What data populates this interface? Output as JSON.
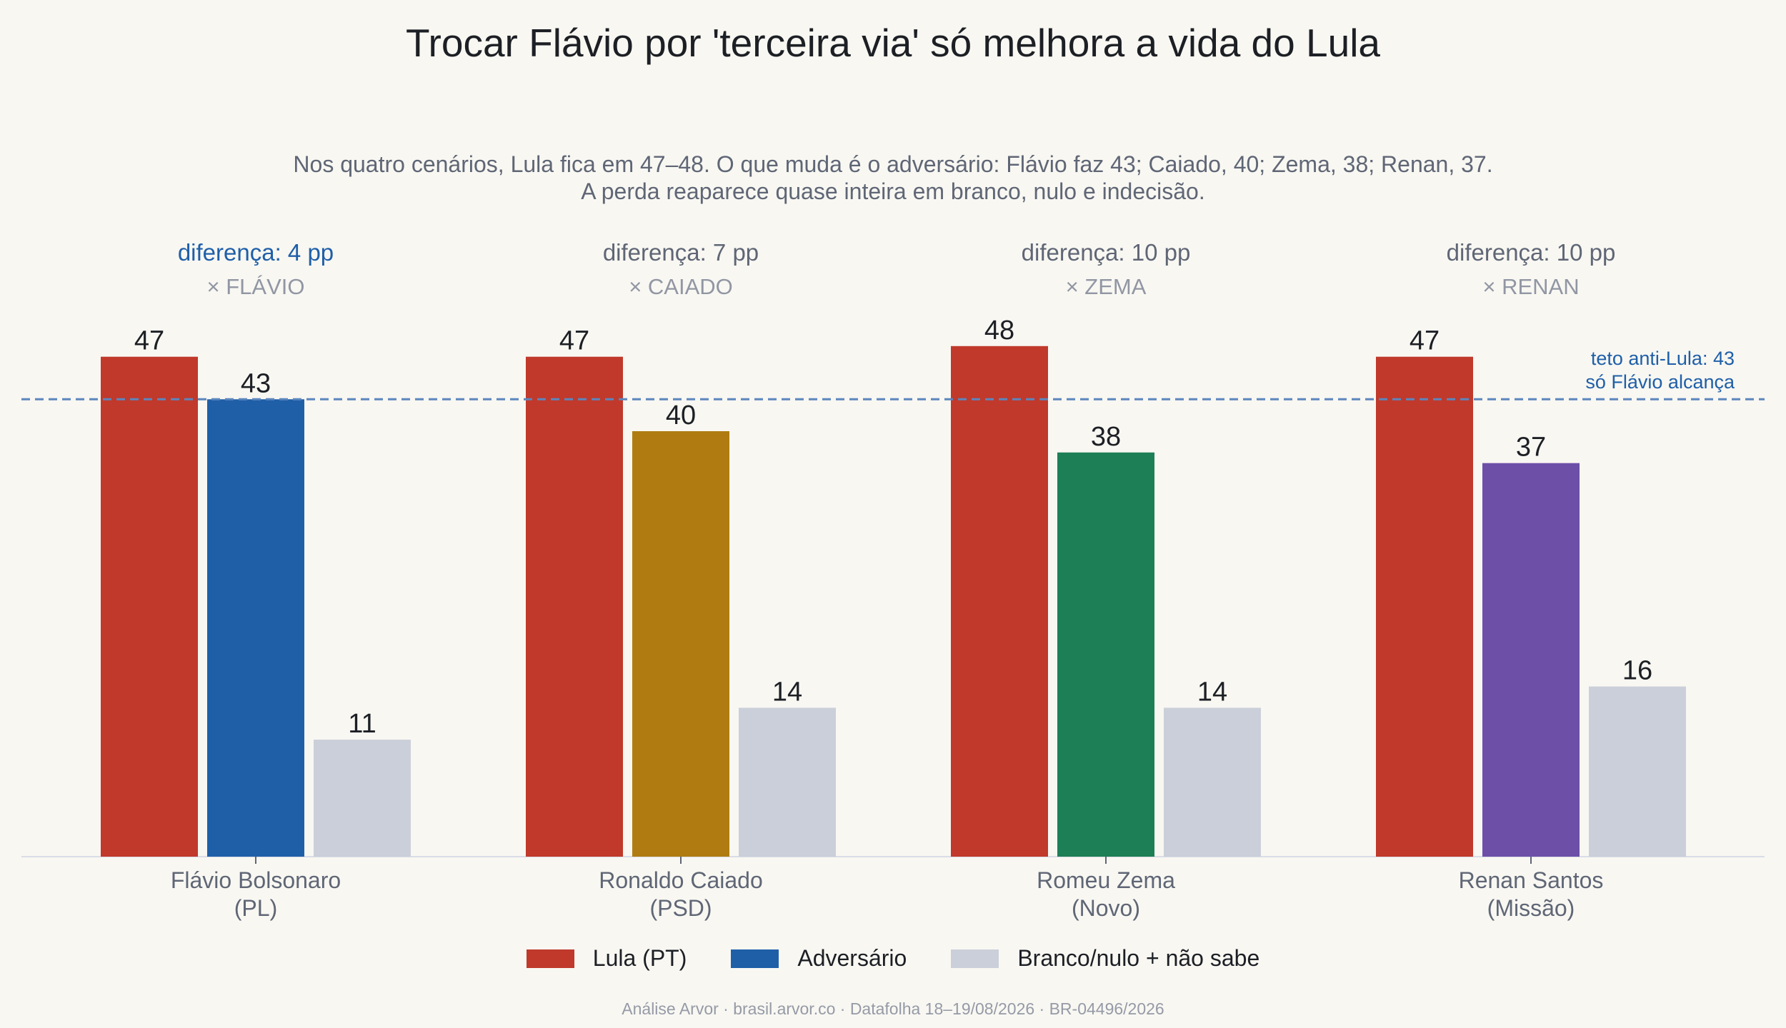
{
  "title": "Trocar Flávio por 'terceira via' só melhora a vida do Lula",
  "subtitle": [
    "Nos quatro cenários, Lula fica em 47–48. O que muda é o adversário: Flávio faz 43; Caiado, 40; Zema, 38; Renan, 37.",
    "A perda reaparece quase inteira em branco, nulo e indecisão."
  ],
  "footer": "Análise Arvor · brasil.arvor.co · Datafolha 18–19/08/2026 · BR-04496/2026",
  "colors": {
    "lula": "#c0392b",
    "flavio": "#1f5fa8",
    "caiado": "#b07c11",
    "zema": "#1d7f55",
    "renan": "#6d4fa8",
    "blank": "#cbcfd9",
    "reference_line": "#5c86bd",
    "highlight_text": "#1f5fa8",
    "muted_text": "#5f6675",
    "label_gray": "#9196a3"
  },
  "legend": [
    {
      "label": "Lula (PT)",
      "color": "#c0392b"
    },
    {
      "label": "Adversário",
      "color": "#1f5fa8"
    },
    {
      "label": "Branco/nulo + não sabe",
      "color": "#cbcfd9"
    }
  ],
  "chart_data": {
    "type": "bar",
    "categories": [
      "Flávio Bolsonaro\n(PL)",
      "Ronaldo Caiado\n(PSD)",
      "Romeu Zema\n(Novo)",
      "Renan Santos\n(Missão)"
    ],
    "series": [
      {
        "name": "Lula (PT)",
        "values": [
          47,
          47,
          48,
          47
        ],
        "colors": [
          "#c0392b",
          "#c0392b",
          "#c0392b",
          "#c0392b"
        ]
      },
      {
        "name": "Adversário",
        "values": [
          43,
          40,
          38,
          37
        ],
        "colors": [
          "#1f5fa8",
          "#b07c11",
          "#1d7f55",
          "#6d4fa8"
        ]
      },
      {
        "name": "Branco/nulo + não sabe",
        "values": [
          11,
          14,
          14,
          16
        ],
        "colors": [
          "#cbcfd9",
          "#cbcfd9",
          "#cbcfd9",
          "#cbcfd9"
        ]
      }
    ],
    "group_annotations": [
      {
        "diff": "diferença: 4 pp",
        "opponent": "× FLÁVIO",
        "highlight": true
      },
      {
        "diff": "diferença: 7 pp",
        "opponent": "× CAIADO",
        "highlight": false
      },
      {
        "diff": "diferença: 10 pp",
        "opponent": "× ZEMA",
        "highlight": false
      },
      {
        "diff": "diferença: 10 pp",
        "opponent": "× RENAN",
        "highlight": false
      }
    ],
    "reference_line": {
      "value": 43,
      "label": [
        "teto anti-Lula: 43",
        "só Flávio alcança"
      ],
      "style": "dashed"
    },
    "ylim": [
      0,
      48
    ],
    "grid": false,
    "legend_position": "bottom"
  }
}
